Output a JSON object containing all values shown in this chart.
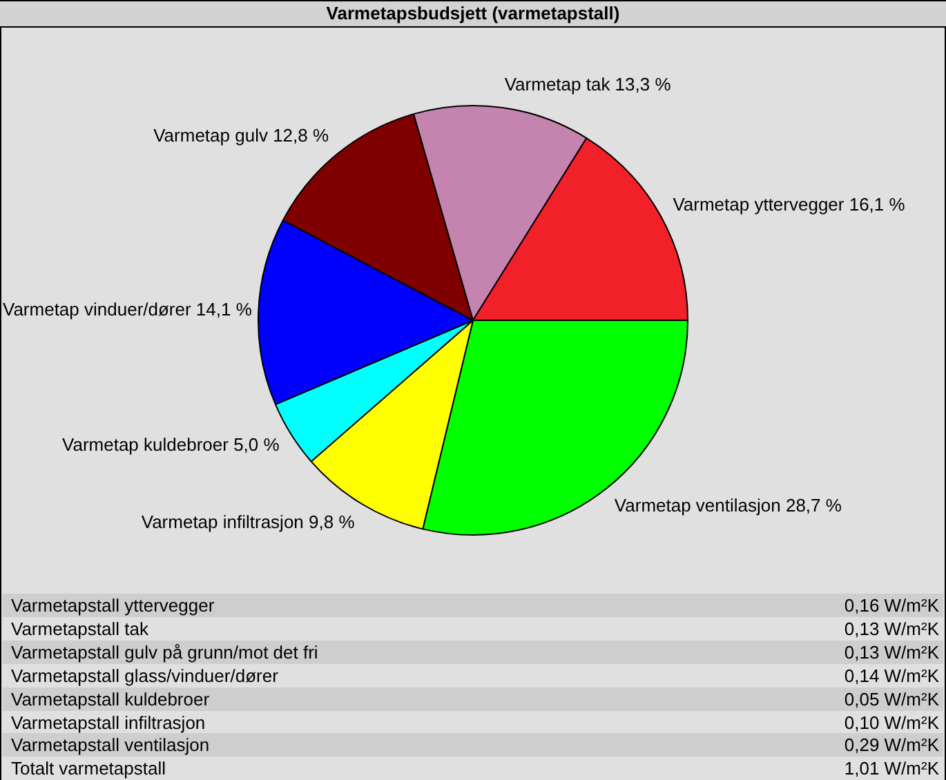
{
  "chart_data": [
    {
      "type": "pie",
      "title": "Varmetapsbudsjett (varmetapstall)",
      "categories": [
        "Varmetap ventilasjon",
        "Varmetap infiltrasjon",
        "Varmetap kuldebroer",
        "Varmetap vinduer/dører",
        "Varmetap gulv",
        "Varmetap tak",
        "Varmetap yttervegger"
      ],
      "values": [
        28.7,
        9.8,
        5.0,
        14.1,
        12.8,
        13.3,
        16.1
      ],
      "value_labels": [
        "28,7 %",
        "9,8 %",
        "5,0 %",
        "14,1 %",
        "12,8 %",
        "13,3 %",
        "16,1 %"
      ],
      "colors": [
        "#00ff00",
        "#ffff00",
        "#00ffff",
        "#0000ff",
        "#800000",
        "#c583b0",
        "#f22129"
      ]
    },
    {
      "type": "other",
      "categories": [
        "Varmetapstall yttervegger",
        "Varmetapstall tak",
        "Varmetapstall gulv på grunn/mot det fri",
        "Varmetapstall glass/vinduer/dører",
        "Varmetapstall kuldebroer",
        "Varmetapstall infiltrasjon",
        "Varmetapstall ventilasjon",
        "Totalt varmetapstall"
      ],
      "value_labels": [
        "0,16 W/m²K",
        "0,13 W/m²K",
        "0,13 W/m²K",
        "0,14 W/m²K",
        "0,05 W/m²K",
        "0,10 W/m²K",
        "0,29 W/m²K",
        "1,01 W/m²K"
      ]
    }
  ]
}
